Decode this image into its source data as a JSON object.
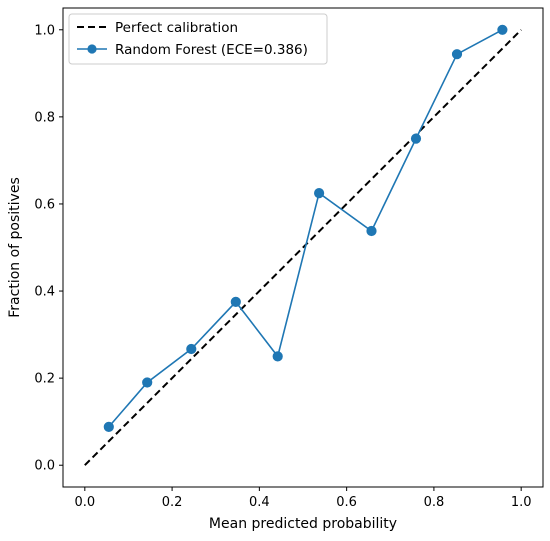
{
  "chart_data": {
    "type": "line",
    "title": "",
    "xlabel": "Mean predicted probability",
    "ylabel": "Fraction of positives",
    "xlim": [
      -0.05,
      1.05
    ],
    "ylim": [
      -0.05,
      1.05
    ],
    "xticks": [
      {
        "value": 0.0,
        "label": "0.0"
      },
      {
        "value": 0.2,
        "label": "0.2"
      },
      {
        "value": 0.4,
        "label": "0.4"
      },
      {
        "value": 0.6,
        "label": "0.6"
      },
      {
        "value": 0.8,
        "label": "0.8"
      },
      {
        "value": 1.0,
        "label": "1.0"
      }
    ],
    "yticks": [
      {
        "value": 0.0,
        "label": "0.0"
      },
      {
        "value": 0.2,
        "label": "0.2"
      },
      {
        "value": 0.4,
        "label": "0.4"
      },
      {
        "value": 0.6,
        "label": "0.6"
      },
      {
        "value": 0.8,
        "label": "0.8"
      },
      {
        "value": 1.0,
        "label": "1.0"
      }
    ],
    "grid": false,
    "legend_position": "top-left",
    "series": [
      {
        "name": "Perfect calibration",
        "style": "dashed",
        "marker": "none",
        "color": "#000000",
        "x": [
          0.0,
          1.0
        ],
        "y": [
          0.0,
          1.0
        ]
      },
      {
        "name": "Random Forest (ECE=0.386)",
        "style": "solid",
        "marker": "circle",
        "color": "#1f77b4",
        "x": [
          0.055,
          0.143,
          0.244,
          0.346,
          0.442,
          0.537,
          0.657,
          0.759,
          0.853,
          0.957
        ],
        "y": [
          0.088,
          0.19,
          0.267,
          0.375,
          0.25,
          0.625,
          0.538,
          0.75,
          0.944,
          1.0
        ]
      }
    ]
  }
}
